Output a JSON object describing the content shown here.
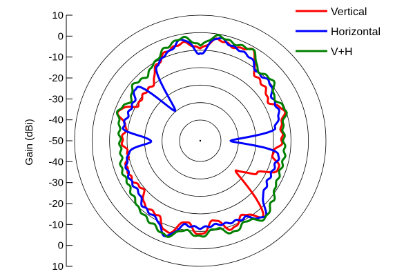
{
  "chart_data": {
    "type": "polar-line",
    "ylabel": "Gain (dBi)",
    "radial_ticks": [
      "10",
      "0",
      "-10",
      "-20",
      "-30",
      "-40",
      "-50",
      "-40",
      "-30",
      "-20",
      "-10",
      "0",
      "10"
    ],
    "r_range_dbi": [
      -50,
      10
    ],
    "ring_values_dbi": [
      -40,
      -30,
      -20,
      -10,
      0,
      10
    ],
    "angle_units": "degrees, 0 = top, clockwise",
    "legend_position": "top-right",
    "series": [
      {
        "name": "Vertical",
        "color": "#ff0000",
        "angles": [
          0,
          10,
          20,
          30,
          40,
          50,
          60,
          70,
          80,
          90,
          100,
          110,
          120,
          130,
          140,
          150,
          160,
          170,
          180,
          190,
          200,
          210,
          220,
          230,
          240,
          250,
          260,
          270,
          280,
          290,
          300,
          310,
          320,
          330,
          340,
          350,
          360
        ],
        "gain_dbi": [
          -9,
          -3,
          -5,
          -2,
          -13,
          -14,
          -17,
          -11,
          -15,
          -15,
          -20,
          -14,
          -25,
          -35,
          -6,
          -13,
          -8,
          -16,
          -8,
          -15,
          -6,
          -13,
          -13,
          -19,
          -17,
          -17,
          -20,
          -17,
          -19,
          -12,
          -21,
          -20,
          -20,
          -12,
          -7,
          -5,
          -9
        ]
      },
      {
        "name": "Horizontal",
        "color": "#0000ff",
        "angles": [
          0,
          10,
          20,
          30,
          40,
          50,
          60,
          70,
          80,
          90,
          100,
          110,
          120,
          130,
          140,
          150,
          160,
          170,
          180,
          190,
          200,
          210,
          220,
          230,
          240,
          250,
          260,
          270,
          280,
          290,
          300,
          310,
          320,
          330,
          340,
          350,
          360
        ],
        "gain_dbi": [
          -12,
          -2,
          -5,
          -6,
          -11,
          -10,
          -14,
          -14,
          -18,
          -45,
          -16,
          -17,
          -17,
          -15,
          -5,
          -11,
          -12,
          -13,
          -12,
          -13,
          -4,
          -11,
          -12,
          -16,
          -16,
          -17,
          -20,
          -34,
          -17,
          -18,
          -18,
          -14,
          -40,
          -12,
          -8,
          -3,
          -12
        ]
      },
      {
        "name": "V+H",
        "color": "#008000",
        "angles": [
          0,
          10,
          20,
          30,
          40,
          50,
          60,
          70,
          80,
          90,
          100,
          110,
          120,
          130,
          140,
          150,
          160,
          170,
          180,
          190,
          200,
          210,
          220,
          230,
          240,
          250,
          260,
          270,
          280,
          290,
          300,
          310,
          320,
          330,
          340,
          350,
          360
        ],
        "gain_dbi": [
          -7,
          -1,
          -3,
          -2,
          -10,
          -8,
          -13,
          -10,
          -14,
          -14,
          -13,
          -13,
          -12,
          -8,
          -4,
          -9,
          -6,
          -11,
          -7,
          -10,
          -4,
          -7,
          -9,
          -12,
          -14,
          -14,
          -16,
          -16,
          -15,
          -12,
          -16,
          -12,
          -14,
          -10,
          -5,
          -2,
          -7
        ]
      }
    ]
  }
}
